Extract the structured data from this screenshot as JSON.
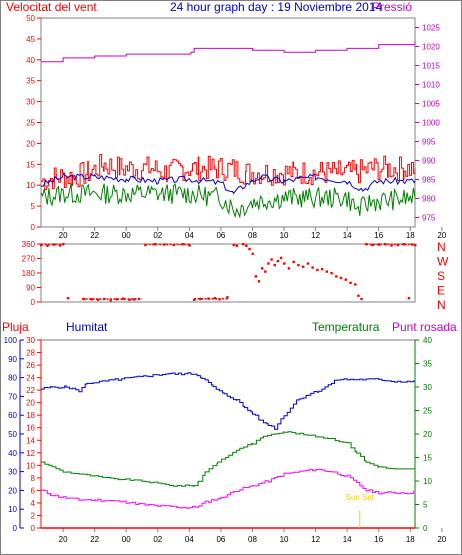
{
  "colors": {
    "wind": "#ff0000",
    "pressure": "#cc00cc",
    "gust_avg": "#0000cc",
    "green": "#008000",
    "frame": "#808080",
    "grid": "#c0c0c0",
    "dir": "#ff0000",
    "humidity": "#0000cc",
    "temperature": "#008000",
    "dewpoint": "#ff00ff",
    "rain": "#ff0000",
    "title": "#0000cc",
    "sunset": "#ffcc00"
  },
  "chart_data": [
    {
      "type": "line",
      "id": "wind_pressure",
      "title": "24 hour graph day : 19 Noviembre 2014",
      "left_label": "Velocitat del vent",
      "right_label": "Pressió",
      "x_ticks": [
        "20",
        "22",
        "00",
        "02",
        "04",
        "06",
        "08",
        "10",
        "12",
        "14",
        "16",
        "18",
        "20",
        "22",
        "00"
      ],
      "y_left_ticks": [
        "0",
        "5",
        "10",
        "15",
        "20",
        "25",
        "30",
        "35",
        "40",
        "45",
        "50"
      ],
      "y_right_ticks": [
        "975",
        "980",
        "985",
        "990",
        "995",
        "1000",
        "1005",
        "1010",
        "1015",
        "1020",
        "1025"
      ],
      "y_left_range": [
        0,
        50
      ],
      "y_right_range": [
        972.5,
        1027.5
      ],
      "x_range_hours": [
        18.6,
        42.3
      ],
      "series": [
        {
          "role": "wind speed max",
          "axis": "left",
          "points": [
            [
              18.6,
              11
            ],
            [
              19.6,
              12
            ],
            [
              20.6,
              12
            ],
            [
              21.6,
              13
            ],
            [
              22.6,
              15
            ],
            [
              23.6,
              14
            ],
            [
              24.6,
              14
            ],
            [
              25.6,
              14
            ],
            [
              26.6,
              13
            ],
            [
              27.6,
              14
            ],
            [
              28.6,
              14
            ],
            [
              29.6,
              14
            ],
            [
              30.6,
              14
            ],
            [
              31.6,
              13
            ],
            [
              32.6,
              13
            ],
            [
              33.6,
              13
            ],
            [
              34.6,
              13
            ],
            [
              35.6,
              13
            ],
            [
              36.6,
              13
            ],
            [
              37.6,
              13
            ],
            [
              38.6,
              13
            ],
            [
              39.6,
              14
            ],
            [
              40.6,
              14
            ],
            [
              41.6,
              14
            ],
            [
              42.3,
              14
            ]
          ]
        },
        {
          "role": "wind speed mean",
          "axis": "left",
          "points": [
            [
              18.6,
              10
            ],
            [
              20.0,
              12
            ],
            [
              22.0,
              12
            ],
            [
              24.0,
              11.5
            ],
            [
              26.0,
              11
            ],
            [
              28.0,
              11.5
            ],
            [
              30.0,
              10.5
            ],
            [
              30.8,
              8
            ],
            [
              31.5,
              10
            ],
            [
              32.5,
              12
            ],
            [
              34.0,
              11
            ],
            [
              36.0,
              12
            ],
            [
              38.0,
              11
            ],
            [
              39.0,
              9
            ],
            [
              40.0,
              11
            ],
            [
              42.3,
              11
            ]
          ]
        },
        {
          "role": "wind speed min",
          "axis": "left",
          "points": [
            [
              18.6,
              7
            ],
            [
              20.0,
              8
            ],
            [
              22.0,
              8
            ],
            [
              24.0,
              8
            ],
            [
              26.0,
              8
            ],
            [
              28.0,
              8
            ],
            [
              30.0,
              7
            ],
            [
              31.0,
              4
            ],
            [
              32.0,
              6
            ],
            [
              34.0,
              7
            ],
            [
              36.0,
              7
            ],
            [
              38.0,
              7
            ],
            [
              38.7,
              4
            ],
            [
              39.5,
              6
            ],
            [
              42.3,
              7
            ]
          ]
        },
        {
          "role": "pressure",
          "axis": "right",
          "points": [
            [
              18.6,
              1016
            ],
            [
              20.0,
              1017
            ],
            [
              22.0,
              1017.5
            ],
            [
              24.0,
              1018
            ],
            [
              26.0,
              1018
            ],
            [
              27.0,
              1018
            ],
            [
              28.1,
              1018.5
            ],
            [
              28.3,
              1019.5
            ],
            [
              30.0,
              1019.5
            ],
            [
              32.0,
              1019
            ],
            [
              34.0,
              1018.5
            ],
            [
              36.0,
              1019
            ],
            [
              38.0,
              1019.5
            ],
            [
              40.0,
              1020.5
            ],
            [
              42.3,
              1021.5
            ]
          ]
        }
      ]
    },
    {
      "type": "scatter",
      "id": "wind_direction",
      "y_ticks": [
        "0",
        "90",
        "180",
        "270",
        "360"
      ],
      "y_range": [
        0,
        360
      ],
      "compass": [
        "N",
        "W",
        "S",
        "E",
        "N"
      ],
      "x_range_hours": [
        18.6,
        42.3
      ],
      "points": [
        [
          18.6,
          355
        ],
        [
          19.0,
          350
        ],
        [
          19.4,
          358
        ],
        [
          19.8,
          352
        ],
        [
          20.0,
          360
        ],
        [
          20.3,
          25
        ],
        [
          21.3,
          20
        ],
        [
          21.8,
          18
        ],
        [
          22.2,
          15
        ],
        [
          22.6,
          20
        ],
        [
          23.0,
          12
        ],
        [
          23.4,
          18
        ],
        [
          23.8,
          22
        ],
        [
          24.2,
          15
        ],
        [
          24.5,
          17
        ],
        [
          24.8,
          20
        ],
        [
          25.2,
          355
        ],
        [
          25.8,
          360
        ],
        [
          26.4,
          358
        ],
        [
          27.0,
          355
        ],
        [
          27.6,
          360
        ],
        [
          28.0,
          352
        ],
        [
          28.3,
          15
        ],
        [
          28.7,
          20
        ],
        [
          29.2,
          22
        ],
        [
          29.6,
          25
        ],
        [
          29.9,
          18
        ],
        [
          30.4,
          30
        ],
        [
          30.8,
          355
        ],
        [
          31.0,
          350
        ],
        [
          31.4,
          360
        ],
        [
          31.6,
          350
        ],
        [
          31.8,
          330
        ],
        [
          32.0,
          300
        ],
        [
          32.2,
          160
        ],
        [
          32.4,
          130
        ],
        [
          32.6,
          210
        ],
        [
          32.8,
          190
        ],
        [
          33.0,
          240
        ],
        [
          33.2,
          265
        ],
        [
          33.4,
          230
        ],
        [
          33.6,
          255
        ],
        [
          33.8,
          275
        ],
        [
          34.0,
          240
        ],
        [
          34.3,
          210
        ],
        [
          34.6,
          250
        ],
        [
          34.9,
          230
        ],
        [
          35.2,
          220
        ],
        [
          35.5,
          240
        ],
        [
          35.8,
          215
        ],
        [
          36.1,
          200
        ],
        [
          36.4,
          205
        ],
        [
          36.7,
          190
        ],
        [
          37.0,
          180
        ],
        [
          37.3,
          160
        ],
        [
          37.6,
          150
        ],
        [
          37.9,
          140
        ],
        [
          38.2,
          120
        ],
        [
          38.5,
          110
        ],
        [
          38.7,
          40
        ],
        [
          38.9,
          20
        ],
        [
          39.2,
          360
        ],
        [
          39.6,
          355
        ],
        [
          40.0,
          358
        ],
        [
          40.4,
          360
        ],
        [
          40.8,
          352
        ],
        [
          41.2,
          355
        ],
        [
          41.6,
          360
        ],
        [
          41.9,
          25
        ],
        [
          42.1,
          358
        ],
        [
          42.3,
          355
        ]
      ]
    },
    {
      "type": "line",
      "id": "temp_humidity",
      "labels": {
        "rain": "Pluja",
        "humidity": "Humitat",
        "temperature": "Temperatura",
        "dewpoint": "Punt rosada"
      },
      "annotation": "Sun Set",
      "annotation_hour": 38.8,
      "y_rain_ticks": [
        "0",
        "2",
        "4",
        "6",
        "8",
        "10",
        "12",
        "14",
        "16",
        "18",
        "20",
        "22",
        "24",
        "26",
        "28",
        "30"
      ],
      "y_humidity_ticks": [
        "0",
        "10",
        "20",
        "30",
        "40",
        "50",
        "60",
        "70",
        "80",
        "90",
        "100"
      ],
      "y_temp_ticks": [
        "0",
        "5",
        "10",
        "15",
        "20",
        "25",
        "30",
        "35",
        "40"
      ],
      "x_ticks": [
        "20",
        "22",
        "00",
        "02",
        "04",
        "06",
        "08",
        "10",
        "12",
        "14",
        "16",
        "18",
        "20",
        "22",
        "00"
      ],
      "rain_range": [
        0,
        30
      ],
      "humidity_range": [
        0,
        100
      ],
      "temp_range": [
        0,
        40
      ],
      "x_range_hours": [
        18.6,
        42.3
      ],
      "series": [
        {
          "name": "Humitat",
          "axis": "humidity",
          "points": [
            [
              18.6,
              74
            ],
            [
              19.3,
              75
            ],
            [
              20.2,
              75
            ],
            [
              21.0,
              73
            ],
            [
              21.5,
              77
            ],
            [
              22.5,
              78
            ],
            [
              23.5,
              79
            ],
            [
              24.5,
              80
            ],
            [
              25.5,
              81
            ],
            [
              26.5,
              82
            ],
            [
              27.5,
              82
            ],
            [
              28.3,
              82
            ],
            [
              28.8,
              80
            ],
            [
              29.5,
              75
            ],
            [
              30.2,
              71
            ],
            [
              31.0,
              68
            ],
            [
              31.5,
              64
            ],
            [
              32.0,
              61
            ],
            [
              32.5,
              57
            ],
            [
              33.0,
              55
            ],
            [
              33.4,
              53
            ],
            [
              33.8,
              58
            ],
            [
              34.2,
              62
            ],
            [
              34.8,
              68
            ],
            [
              35.5,
              71
            ],
            [
              36.2,
              73
            ],
            [
              36.8,
              76
            ],
            [
              37.4,
              79
            ],
            [
              38.0,
              79
            ],
            [
              39.0,
              79
            ],
            [
              40.0,
              79
            ],
            [
              41.0,
              78
            ],
            [
              42.3,
              78
            ]
          ]
        },
        {
          "name": "Temperatura",
          "axis": "temp",
          "points": [
            [
              18.6,
              14
            ],
            [
              19.3,
              13
            ],
            [
              20.0,
              12
            ],
            [
              21.0,
              11.5
            ],
            [
              22.0,
              11
            ],
            [
              23.0,
              10.5
            ],
            [
              24.0,
              10.3
            ],
            [
              25.0,
              10
            ],
            [
              26.0,
              9.5
            ],
            [
              27.0,
              9
            ],
            [
              28.0,
              9
            ],
            [
              28.3,
              9
            ],
            [
              28.6,
              10
            ],
            [
              29.0,
              12
            ],
            [
              29.8,
              14
            ],
            [
              30.5,
              15.5
            ],
            [
              31.2,
              17
            ],
            [
              32.0,
              18
            ],
            [
              32.7,
              19.5
            ],
            [
              33.2,
              20
            ],
            [
              34.0,
              20.5
            ],
            [
              35.0,
              20
            ],
            [
              36.0,
              19.5
            ],
            [
              37.0,
              19
            ],
            [
              38.0,
              18
            ],
            [
              38.6,
              16
            ],
            [
              39.2,
              14
            ],
            [
              40.0,
              13
            ],
            [
              41.0,
              12.5
            ],
            [
              42.3,
              12.5
            ]
          ]
        },
        {
          "name": "Punt rosada",
          "axis": "temp",
          "points": [
            [
              18.6,
              8
            ],
            [
              19.3,
              7
            ],
            [
              20.0,
              6.5
            ],
            [
              21.0,
              6
            ],
            [
              22.0,
              6
            ],
            [
              23.0,
              5.8
            ],
            [
              24.0,
              5.5
            ],
            [
              25.0,
              5
            ],
            [
              26.0,
              4.7
            ],
            [
              27.0,
              4.5
            ],
            [
              28.0,
              4.3
            ],
            [
              28.4,
              4.5
            ],
            [
              29.0,
              5.5
            ],
            [
              30.0,
              6.5
            ],
            [
              31.0,
              8
            ],
            [
              32.0,
              9
            ],
            [
              33.0,
              10
            ],
            [
              34.0,
              11.5
            ],
            [
              35.0,
              12
            ],
            [
              36.0,
              12.5
            ],
            [
              37.0,
              12
            ],
            [
              38.0,
              11
            ],
            [
              38.6,
              9.5
            ],
            [
              39.2,
              8
            ],
            [
              40.0,
              7.5
            ],
            [
              41.0,
              7.5
            ],
            [
              42.3,
              7.5
            ]
          ]
        },
        {
          "name": "Pluja",
          "axis": "rain",
          "points": [
            [
              18.6,
              0
            ],
            [
              42.3,
              0
            ]
          ]
        }
      ]
    }
  ]
}
